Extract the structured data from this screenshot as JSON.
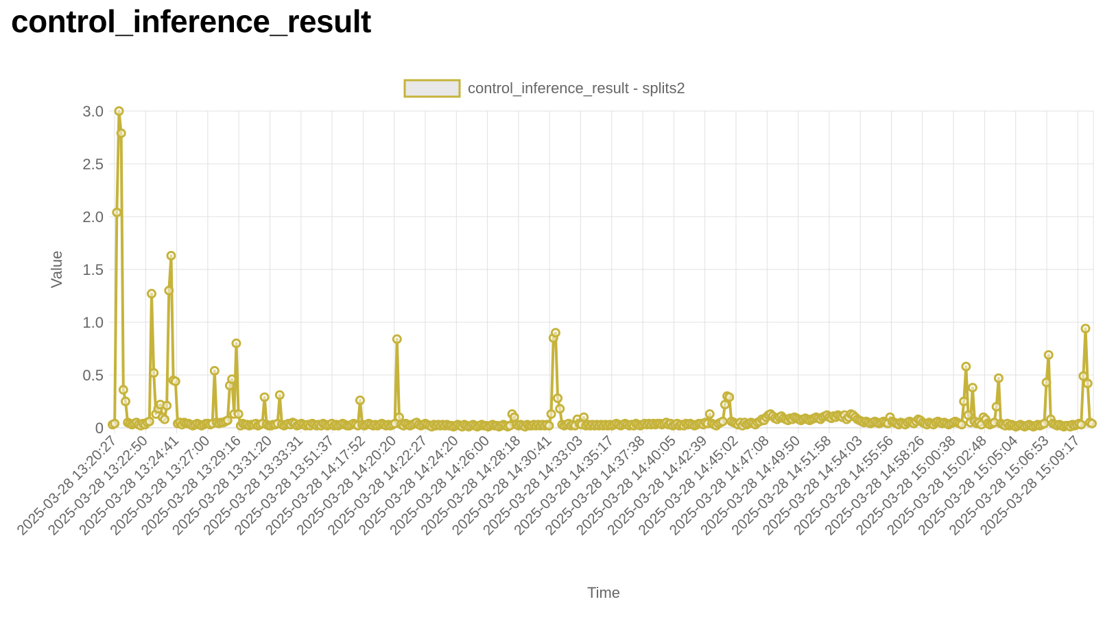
{
  "page": {
    "title": "control_inference_result"
  },
  "colors": {
    "series": "#c6b33b",
    "legend_fill": "#e8e8e8",
    "grid": "#e0e0e0",
    "text": "#666666"
  },
  "chart_data": {
    "type": "line",
    "title": "",
    "xlabel": "Time",
    "ylabel": "Value",
    "ylim": [
      0,
      3.0
    ],
    "yticks": [
      "3.0",
      "2.5",
      "2.0",
      "1.5",
      "1.0",
      "0.5",
      "0"
    ],
    "grid": true,
    "legend_position": "top",
    "x_tick_labels": [
      "2025-03-28 13:20:27",
      "2025-03-28 13:22:50",
      "2025-03-28 13:24:41",
      "2025-03-28 13:27:00",
      "2025-03-28 13:29:16",
      "2025-03-28 13:31:20",
      "2025-03-28 13:33:31",
      "2025-03-28 13:51:37",
      "2025-03-28 14:17:52",
      "2025-03-28 14:20:20",
      "2025-03-28 14:22:27",
      "2025-03-28 14:24:20",
      "2025-03-28 14:26:00",
      "2025-03-28 14:28:18",
      "2025-03-28 14:30:41",
      "2025-03-28 14:33:03",
      "2025-03-28 14:35:17",
      "2025-03-28 14:37:38",
      "2025-03-28 14:40:05",
      "2025-03-28 14:42:39",
      "2025-03-28 14:45:02",
      "2025-03-28 14:47:08",
      "2025-03-28 14:49:50",
      "2025-03-28 14:51:58",
      "2025-03-28 14:54:03",
      "2025-03-28 14:55:56",
      "2025-03-28 14:58:26",
      "2025-03-28 15:00:38",
      "2025-03-28 15:02:48",
      "2025-03-28 15:05:04",
      "2025-03-28 15:06:53",
      "2025-03-28 15:09:17"
    ],
    "series": [
      {
        "name": "control_inference_result - splits2",
        "values": [
          0.03,
          0.04,
          2.04,
          3.0,
          2.79,
          0.36,
          0.25,
          0.05,
          0.04,
          0.03,
          0.04,
          0.05,
          0.03,
          0.02,
          0.04,
          0.03,
          0.05,
          0.06,
          1.27,
          0.52,
          0.13,
          0.18,
          0.22,
          0.1,
          0.08,
          0.21,
          1.3,
          1.63,
          0.45,
          0.44,
          0.04,
          0.05,
          0.03,
          0.05,
          0.04,
          0.04,
          0.03,
          0.02,
          0.03,
          0.04,
          0.03,
          0.02,
          0.03,
          0.04,
          0.04,
          0.03,
          0.04,
          0.54,
          0.05,
          0.04,
          0.05,
          0.05,
          0.06,
          0.07,
          0.4,
          0.46,
          0.13,
          0.8,
          0.13,
          0.02,
          0.04,
          0.03,
          0.03,
          0.02,
          0.03,
          0.03,
          0.04,
          0.02,
          0.03,
          0.04,
          0.29,
          0.03,
          0.02,
          0.02,
          0.03,
          0.03,
          0.04,
          0.31,
          0.03,
          0.02,
          0.03,
          0.04,
          0.03,
          0.05,
          0.04,
          0.02,
          0.03,
          0.04,
          0.03,
          0.02,
          0.03,
          0.02,
          0.04,
          0.03,
          0.02,
          0.03,
          0.02,
          0.04,
          0.03,
          0.02,
          0.03,
          0.04,
          0.02,
          0.03,
          0.02,
          0.03,
          0.04,
          0.03,
          0.02,
          0.02,
          0.03,
          0.04,
          0.03,
          0.02,
          0.26,
          0.03,
          0.02,
          0.03,
          0.04,
          0.03,
          0.02,
          0.03,
          0.02,
          0.03,
          0.04,
          0.03,
          0.02,
          0.03,
          0.02,
          0.03,
          0.04,
          0.84,
          0.1,
          0.03,
          0.02,
          0.04,
          0.03,
          0.02,
          0.03,
          0.04,
          0.05,
          0.03,
          0.02,
          0.03,
          0.04,
          0.03,
          0.02,
          0.01,
          0.03,
          0.02,
          0.03,
          0.02,
          0.03,
          0.02,
          0.03,
          0.02,
          0.02,
          0.01,
          0.02,
          0.03,
          0.02,
          0.01,
          0.03,
          0.02,
          0.01,
          0.02,
          0.03,
          0.02,
          0.01,
          0.02,
          0.03,
          0.02,
          0.02,
          0.01,
          0.02,
          0.03,
          0.02,
          0.02,
          0.01,
          0.02,
          0.03,
          0.02,
          0.01,
          0.02,
          0.13,
          0.1,
          0.03,
          0.02,
          0.03,
          0.02,
          0.01,
          0.03,
          0.02,
          0.02,
          0.03,
          0.02,
          0.03,
          0.02,
          0.03,
          0.02,
          0.03,
          0.02,
          0.13,
          0.85,
          0.9,
          0.28,
          0.18,
          0.03,
          0.02,
          0.03,
          0.04,
          0.02,
          0.03,
          0.02,
          0.08,
          0.04,
          0.03,
          0.1,
          0.02,
          0.03,
          0.02,
          0.03,
          0.02,
          0.03,
          0.02,
          0.03,
          0.02,
          0.03,
          0.02,
          0.03,
          0.02,
          0.03,
          0.04,
          0.03,
          0.02,
          0.03,
          0.04,
          0.03,
          0.02,
          0.03,
          0.02,
          0.04,
          0.03,
          0.02,
          0.03,
          0.04,
          0.03,
          0.04,
          0.03,
          0.04,
          0.03,
          0.04,
          0.04,
          0.03,
          0.04,
          0.05,
          0.03,
          0.04,
          0.02,
          0.03,
          0.04,
          0.02,
          0.03,
          0.02,
          0.04,
          0.03,
          0.04,
          0.03,
          0.02,
          0.03,
          0.04,
          0.04,
          0.03,
          0.05,
          0.04,
          0.13,
          0.04,
          0.03,
          0.02,
          0.04,
          0.05,
          0.06,
          0.22,
          0.3,
          0.29,
          0.06,
          0.05,
          0.04,
          0.03,
          0.05,
          0.02,
          0.05,
          0.03,
          0.04,
          0.05,
          0.04,
          0.03,
          0.05,
          0.06,
          0.08,
          0.07,
          0.1,
          0.12,
          0.13,
          0.11,
          0.09,
          0.08,
          0.1,
          0.11,
          0.09,
          0.08,
          0.07,
          0.09,
          0.08,
          0.1,
          0.09,
          0.08,
          0.07,
          0.08,
          0.09,
          0.08,
          0.07,
          0.08,
          0.09,
          0.1,
          0.09,
          0.08,
          0.1,
          0.11,
          0.12,
          0.1,
          0.09,
          0.11,
          0.1,
          0.12,
          0.11,
          0.1,
          0.12,
          0.08,
          0.1,
          0.13,
          0.12,
          0.1,
          0.08,
          0.07,
          0.06,
          0.05,
          0.06,
          0.05,
          0.04,
          0.05,
          0.06,
          0.05,
          0.04,
          0.05,
          0.06,
          0.05,
          0.04,
          0.1,
          0.06,
          0.05,
          0.04,
          0.03,
          0.05,
          0.04,
          0.03,
          0.05,
          0.06,
          0.05,
          0.04,
          0.06,
          0.08,
          0.07,
          0.05,
          0.04,
          0.03,
          0.05,
          0.04,
          0.03,
          0.05,
          0.06,
          0.05,
          0.04,
          0.05,
          0.04,
          0.03,
          0.04,
          0.05,
          0.06,
          0.05,
          0.04,
          0.03,
          0.25,
          0.58,
          0.12,
          0.05,
          0.38,
          0.06,
          0.04,
          0.05,
          0.03,
          0.1,
          0.08,
          0.04,
          0.03,
          0.04,
          0.05,
          0.2,
          0.47,
          0.04,
          0.03,
          0.02,
          0.04,
          0.02,
          0.03,
          0.02,
          0.01,
          0.02,
          0.03,
          0.02,
          0.01,
          0.02,
          0.03,
          0.02,
          0.01,
          0.02,
          0.03,
          0.02,
          0.03,
          0.04,
          0.43,
          0.69,
          0.08,
          0.04,
          0.03,
          0.02,
          0.03,
          0.02,
          0.01,
          0.02,
          0.02,
          0.01,
          0.03,
          0.02,
          0.03,
          0.04,
          0.03,
          0.49,
          0.94,
          0.42,
          0.05,
          0.04
        ]
      }
    ]
  }
}
